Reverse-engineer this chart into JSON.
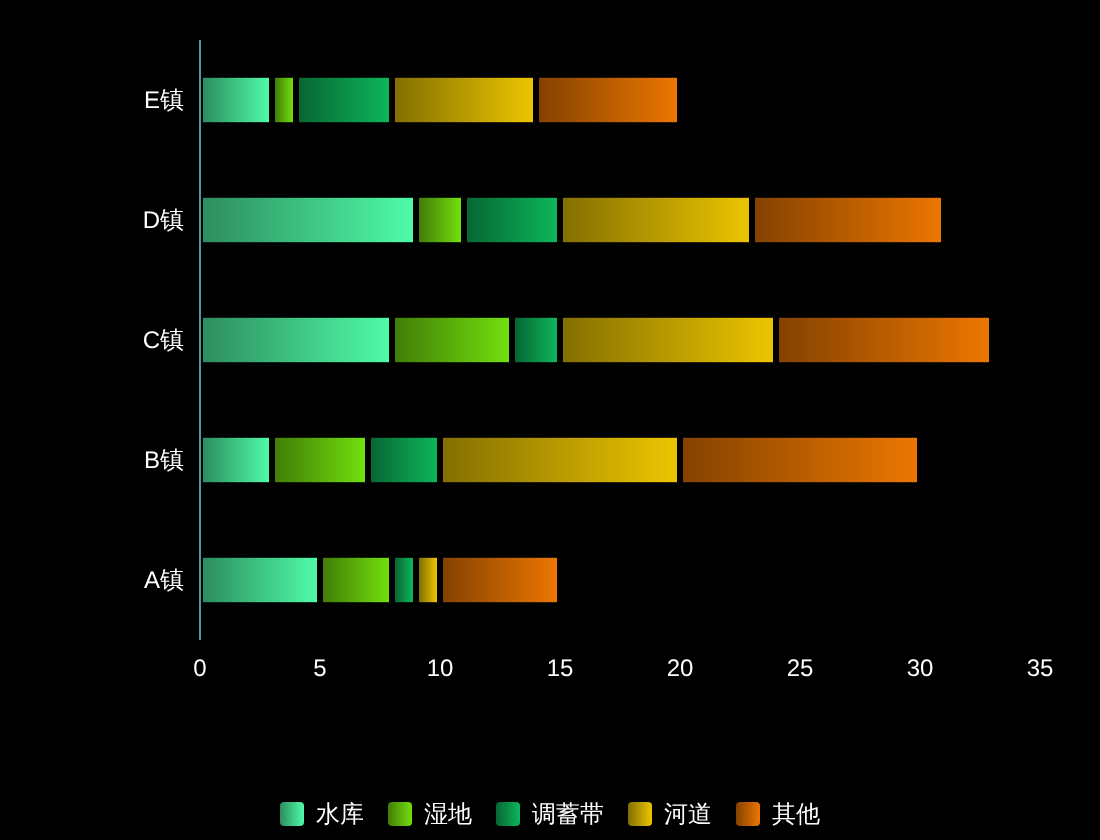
{
  "chart_data": {
    "type": "bar",
    "orientation": "horizontal",
    "stacked": true,
    "categories": [
      "E镇",
      "D镇",
      "C镇",
      "B镇",
      "A镇"
    ],
    "series": [
      {
        "name": "水库",
        "color": "#3ec483",
        "values": [
          3,
          9,
          8,
          3,
          5
        ]
      },
      {
        "name": "湿地",
        "color": "#5aae0a",
        "values": [
          1,
          2,
          5,
          4,
          3
        ]
      },
      {
        "name": "调蓄带",
        "color": "#0a8e47",
        "values": [
          4,
          4,
          2,
          3,
          1
        ]
      },
      {
        "name": "河道",
        "color": "#b89a00",
        "values": [
          6,
          8,
          9,
          10,
          1
        ]
      },
      {
        "name": "其他",
        "color": "#b85c00",
        "values": [
          6,
          8,
          9,
          10,
          5
        ]
      }
    ],
    "xlim": [
      0,
      35
    ],
    "xticks": [
      0,
      5,
      10,
      15,
      20,
      25,
      30,
      35
    ],
    "legend": "bottom"
  }
}
